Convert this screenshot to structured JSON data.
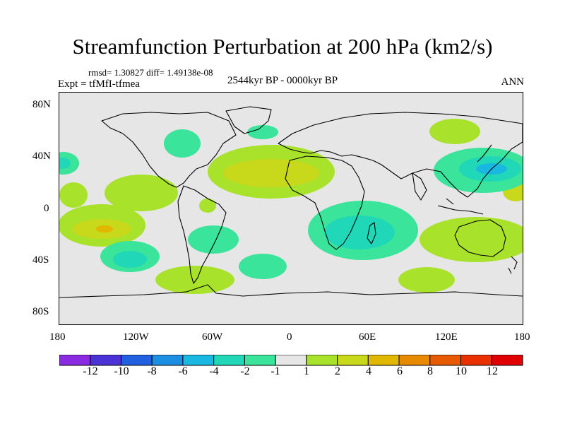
{
  "title": "Streamfunction Perturbation at 200 hPa (km2/s)",
  "stats": "rmsd= 1.30827 diff= 1.49138e-08",
  "expt": "Expt = tfMfI-tfmea",
  "period": "2544kyr BP - 0000kyr BP",
  "season": "ANN",
  "axes": {
    "lat_labels": [
      "80N",
      "40N",
      "0",
      "40S",
      "80S"
    ],
    "lon_labels": [
      "180",
      "120W",
      "60W",
      "0",
      "60E",
      "120E",
      "180"
    ]
  },
  "colorbar": {
    "labels": [
      "-12",
      "-10",
      "-8",
      "-6",
      "-4",
      "-2",
      "-1",
      "1",
      "2",
      "4",
      "6",
      "8",
      "10",
      "12"
    ],
    "colors": [
      "#8a2be2",
      "#4b32d6",
      "#1f5fe0",
      "#1c8fe3",
      "#18b8e0",
      "#20d8b8",
      "#3ae49a",
      "#e6e6e6",
      "#a8e22a",
      "#c8d81a",
      "#e0b800",
      "#e88a00",
      "#e85a00",
      "#e83000",
      "#e00000"
    ]
  },
  "colors": {
    "background": "#e6e6e6",
    "pos1": "#a8e22a",
    "pos2": "#c8d81a",
    "pos3": "#e0b800",
    "pos4": "#e88a00",
    "neg1": "#3ae49a",
    "neg2": "#20d8b8",
    "neg3": "#18b8e0"
  }
}
